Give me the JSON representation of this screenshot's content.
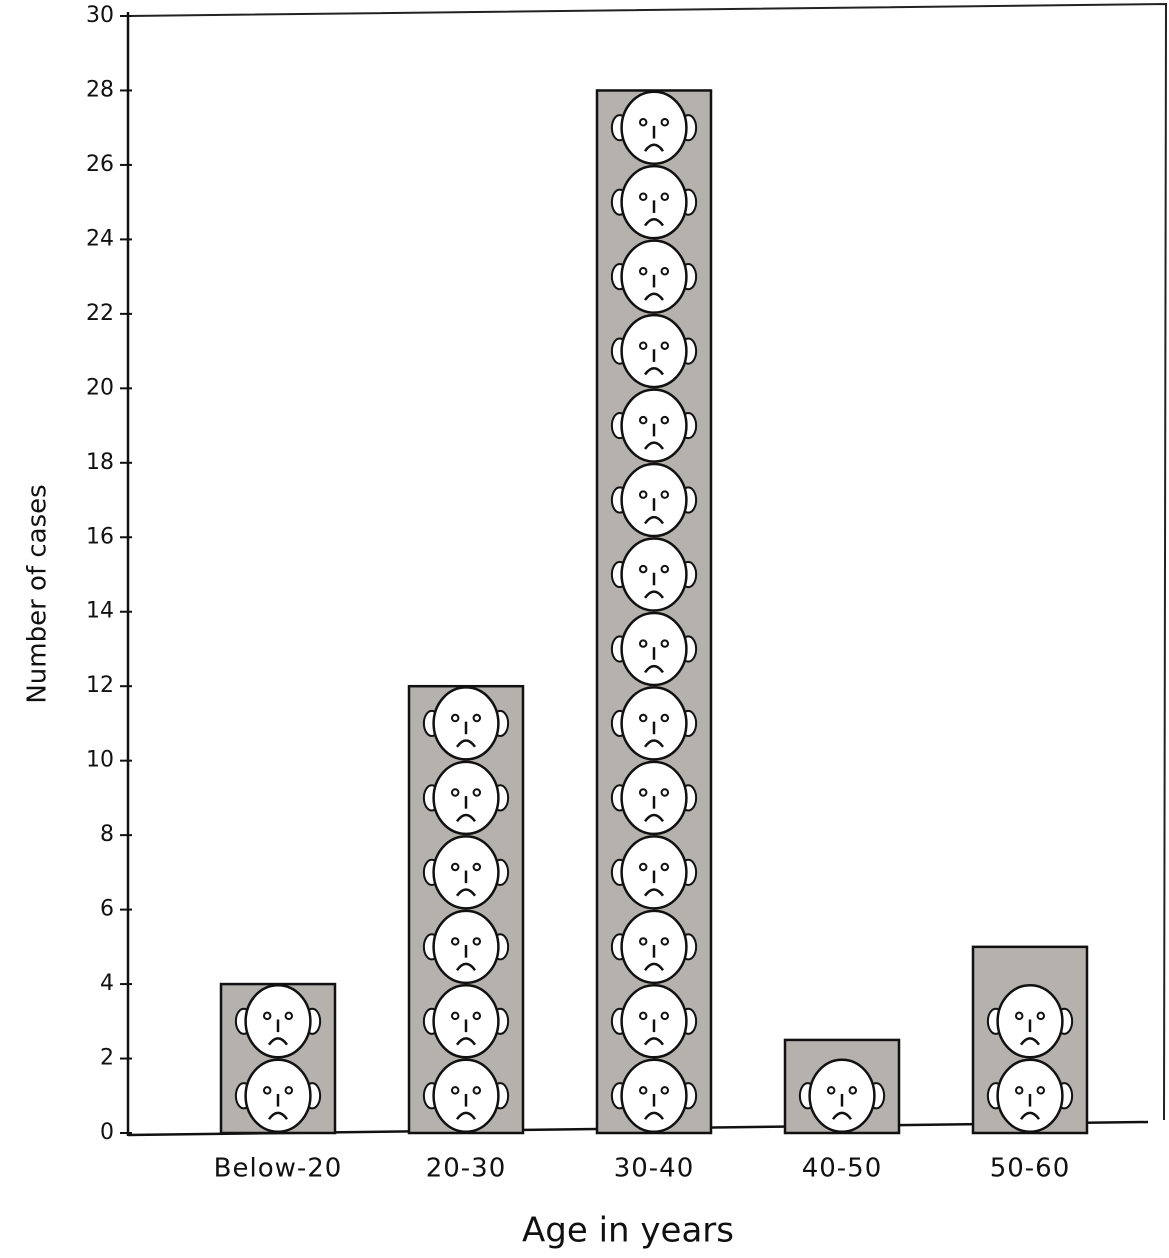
{
  "chart_data": {
    "type": "bar",
    "x_label": "Age in years",
    "y_label": "Number of cases",
    "categories": [
      "Below-20",
      "20-30",
      "30-40",
      "40-50",
      "50-60"
    ],
    "values": [
      4,
      12,
      28,
      2.5,
      5
    ],
    "color": "#b5b1ac",
    "ylim": [
      0,
      30
    ],
    "yticks": [
      0,
      2,
      4,
      6,
      8,
      10,
      12,
      14,
      16,
      18,
      20,
      22,
      24,
      26,
      28,
      30
    ],
    "grid": false
  }
}
